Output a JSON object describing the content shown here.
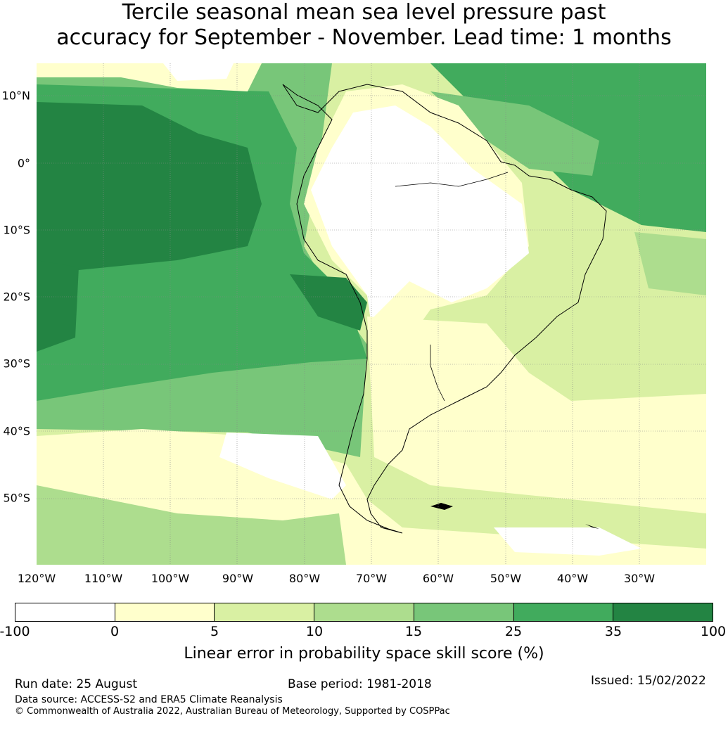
{
  "title_line1": "Tercile seasonal mean sea level pressure past",
  "title_line2": "accuracy for September - November. Lead time: 1 months",
  "lat_labels": [
    "10°N",
    "0°",
    "10°S",
    "20°S",
    "30°S",
    "40°S",
    "50°S"
  ],
  "lon_labels": [
    "120°W",
    "110°W",
    "100°W",
    "90°W",
    "80°W",
    "70°W",
    "60°W",
    "50°W",
    "40°W",
    "30°W"
  ],
  "colorbar": {
    "ticks": [
      "-100",
      "0",
      "5",
      "10",
      "15",
      "25",
      "35",
      "100"
    ],
    "colors": [
      "#ffffff",
      "#ffffcc",
      "#d9f0a3",
      "#addd8e",
      "#78c679",
      "#41ab5d",
      "#238443"
    ],
    "label": "Linear error in probability space skill score (%)"
  },
  "footer": {
    "run_date": "Run date: 25 August",
    "base_period": "Base period: 1981-2018",
    "issued": "Issued: 15/02/2022",
    "data_source": "Data source: ACCESS-S2 and ERA5 Climate Reanalysis",
    "copyright": "© Commonwealth of Australia 2022, Australian Bureau of Meteorology, Supported by COSPPac"
  }
}
